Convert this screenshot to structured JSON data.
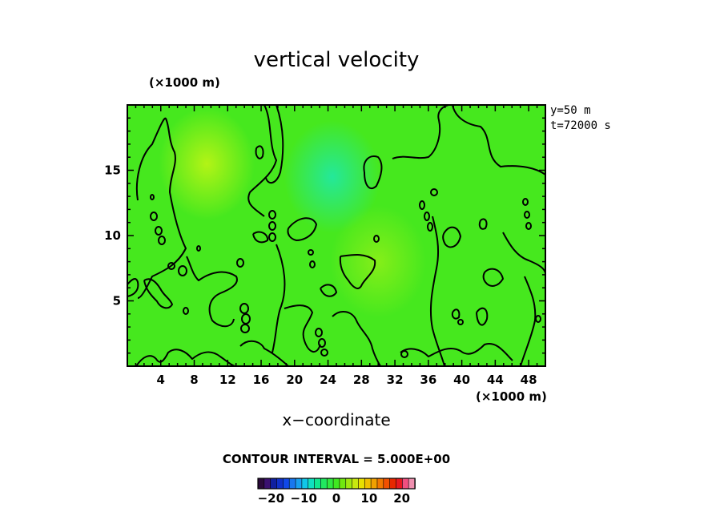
{
  "chart_data": {
    "type": "heatmap",
    "title": "vertical velocity",
    "xlabel": "x−coordinate",
    "x_units_note": "(×1000 m)",
    "y_units_note": "(×1000 m)",
    "annotations": [
      "y=50  m",
      "t=72000  s"
    ],
    "contour_interval_text": "CONTOUR INTERVAL = 5.000E+00",
    "xlim": [
      0,
      50
    ],
    "ylim": [
      0,
      20
    ],
    "x_ticks": [
      4,
      8,
      12,
      16,
      20,
      24,
      28,
      32,
      36,
      40,
      44,
      48
    ],
    "y_ticks": [
      5,
      10,
      15
    ],
    "colorbar": {
      "range": [
        -24,
        24
      ],
      "ticks": [
        -20,
        -10,
        0,
        10,
        20
      ],
      "tick_labels": [
        "−20",
        "−10",
        "0",
        "10",
        "20"
      ],
      "colors": [
        "#2a0a3a",
        "#3a1070",
        "#1020a0",
        "#1030c8",
        "#1048e8",
        "#1878f0",
        "#18a0f0",
        "#10c8e8",
        "#10e0c0",
        "#10e890",
        "#20e860",
        "#30e840",
        "#40e820",
        "#70e810",
        "#a0e810",
        "#c8e810",
        "#e8e000",
        "#f0c000",
        "#f0a000",
        "#f07800",
        "#f05000",
        "#e82800",
        "#e81820",
        "#f05080",
        "#f090b0"
      ]
    },
    "field_value_range": [
      -3,
      3
    ],
    "field_hotspots": [
      {
        "x": 9.5,
        "y": 15.5,
        "value": 2.5,
        "color": "#bff515"
      },
      {
        "x": 24.5,
        "y": 14.5,
        "value": -2.5,
        "color": "#20e8a8"
      },
      {
        "x": 30,
        "y": 8,
        "value": 1.2,
        "color": "#8cef18"
      }
    ],
    "background_color": "#46e81e"
  }
}
